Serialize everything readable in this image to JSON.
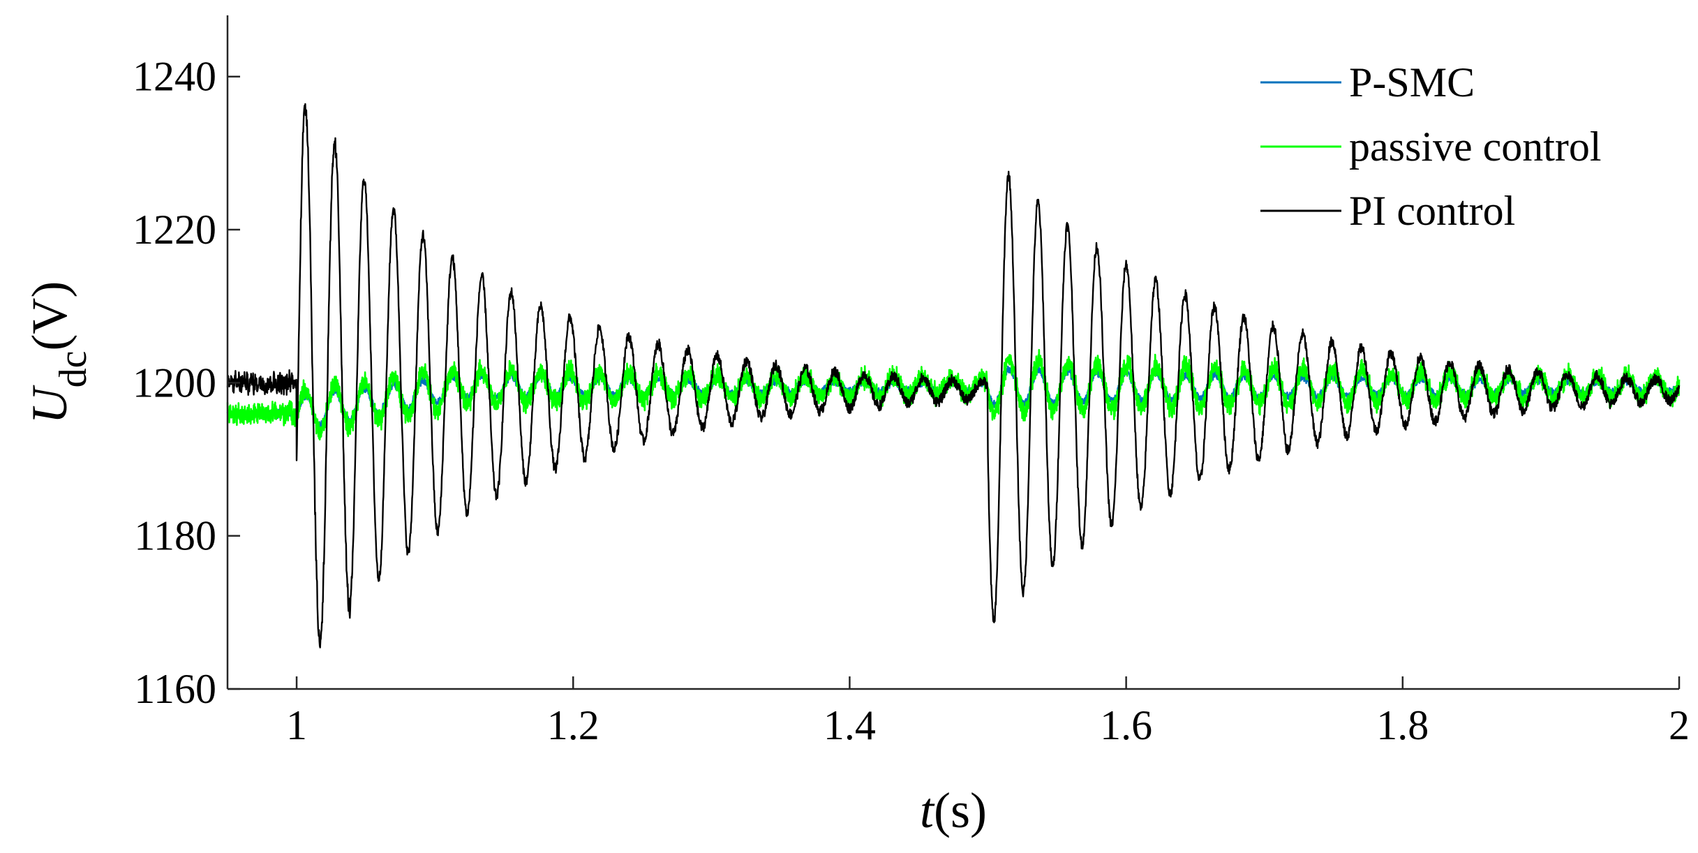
{
  "chart_data": {
    "type": "line",
    "xlabel_var": "t",
    "xlabel_unit": "(s)",
    "ylabel_var": "U",
    "ylabel_sub": "dc",
    "ylabel_unit": "(V)",
    "xlim": [
      0.95,
      2.0
    ],
    "ylim": [
      1160,
      1248
    ],
    "xticks": [
      1,
      1.2,
      1.4,
      1.6,
      1.8,
      2
    ],
    "xtick_labels": [
      "1",
      "1.2",
      "1.4",
      "1.6",
      "1.8",
      "2"
    ],
    "yticks": [
      1160,
      1180,
      1200,
      1220,
      1240
    ],
    "ytick_labels": [
      "1160",
      "1180",
      "1200",
      "1220",
      "1240"
    ],
    "grid": false,
    "legend_position": "top-right",
    "disturbance_times": [
      1.0,
      1.5
    ],
    "series": [
      {
        "name": "P-SMC",
        "color": "#0072BD",
        "pre_level": 1196,
        "settle_level": 1199.5,
        "amplitude_1": 2.2,
        "amplitude_2": 2.0,
        "osc_freq_hz": 47,
        "decay_per_s": 3.0,
        "noise": 0.35,
        "band_width": 0.6
      },
      {
        "name": "passive control",
        "color": "#00FF00",
        "pre_level": 1196,
        "settle_level": 1199.5,
        "amplitude_1": 3.0,
        "amplitude_2": 2.7,
        "osc_freq_hz": 47,
        "decay_per_s": 2.2,
        "noise": 0.6,
        "band_width": 2.2
      },
      {
        "name": "PI control",
        "color": "#000000",
        "pre_level": 1200,
        "settle_level": 1199,
        "amplitude_1": 38,
        "amplitude_2": 30,
        "osc_freq_hz": 47,
        "decay_per_s": 7.0,
        "noise": 0.7,
        "band_width": 0
      }
    ]
  }
}
